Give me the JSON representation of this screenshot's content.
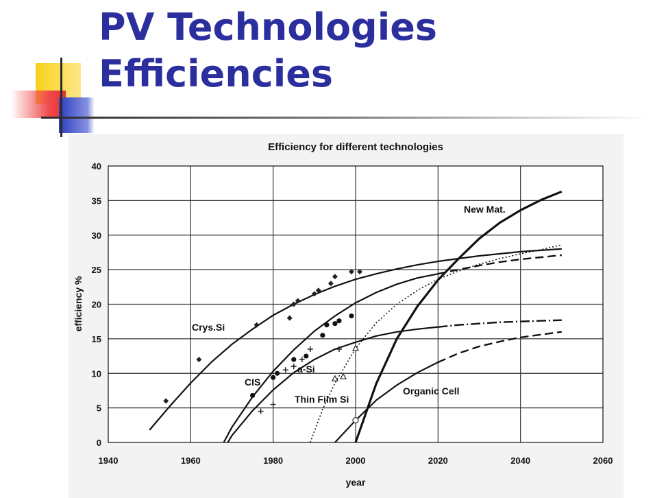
{
  "slide": {
    "title_line1": "PV Technologies",
    "title_line2": "Efficiencies"
  },
  "chart_data": {
    "type": "line",
    "title": "Efficiency for different technologies",
    "xlabel": "year",
    "ylabel": "efficiency %",
    "xlim": [
      1940,
      2060
    ],
    "ylim": [
      0,
      40
    ],
    "xticks": [
      1940,
      1960,
      1980,
      2000,
      2020,
      2040,
      2060
    ],
    "yticks": [
      0,
      5,
      10,
      15,
      20,
      25,
      30,
      35,
      40
    ],
    "grid": true,
    "legend": "none",
    "series": [
      {
        "name": "Crys.Si",
        "points": [
          [
            1950,
            1.8
          ],
          [
            1955,
            5.3
          ],
          [
            1960,
            8.6
          ],
          [
            1965,
            11.6
          ],
          [
            1970,
            14.2
          ],
          [
            1975,
            16.4
          ],
          [
            1980,
            18.4
          ],
          [
            1985,
            20.0
          ],
          [
            1990,
            21.4
          ],
          [
            1995,
            22.6
          ],
          [
            2000,
            23.6
          ],
          [
            2005,
            24.4
          ],
          [
            2010,
            25.1
          ],
          [
            2015,
            25.7
          ],
          [
            2020,
            26.2
          ],
          [
            2025,
            26.6
          ],
          [
            2030,
            27.0
          ],
          [
            2035,
            27.3
          ],
          [
            2040,
            27.6
          ],
          [
            2045,
            27.8
          ],
          [
            2050,
            28.0
          ]
        ],
        "projection": [],
        "markers": [
          [
            1954,
            6.0
          ],
          [
            1962,
            12.0
          ],
          [
            1976,
            17.0
          ],
          [
            1984,
            18.0
          ],
          [
            1985,
            20.0
          ],
          [
            1986,
            20.5
          ],
          [
            1990,
            21.5
          ],
          [
            1991,
            22.0
          ],
          [
            1994,
            23.0
          ],
          [
            1995,
            24.0
          ],
          [
            1999,
            24.7
          ],
          [
            2001,
            24.7
          ]
        ]
      },
      {
        "name": "CIS",
        "points": [
          [
            1968,
            0.0
          ],
          [
            1970,
            2.2
          ],
          [
            1975,
            6.6
          ],
          [
            1980,
            10.3
          ],
          [
            1985,
            13.4
          ],
          [
            1990,
            16.1
          ],
          [
            1995,
            18.3
          ],
          [
            2000,
            20.2
          ],
          [
            2005,
            21.7
          ],
          [
            2010,
            22.9
          ],
          [
            2015,
            23.8
          ],
          [
            2020,
            24.4
          ]
        ],
        "projection": [
          [
            2020,
            24.4
          ],
          [
            2025,
            25.0
          ],
          [
            2030,
            25.6
          ],
          [
            2035,
            26.1
          ],
          [
            2040,
            26.5
          ],
          [
            2045,
            26.8
          ],
          [
            2050,
            27.1
          ]
        ],
        "markers": [
          [
            1975,
            6.8
          ],
          [
            1980,
            9.4
          ],
          [
            1981,
            10.0
          ],
          [
            1985,
            12.0
          ],
          [
            1988,
            12.5
          ],
          [
            1992,
            15.5
          ],
          [
            1993,
            17.0
          ],
          [
            1995,
            17.2
          ],
          [
            1996,
            17.6
          ],
          [
            1999,
            18.3
          ]
        ]
      },
      {
        "name": "a-Si",
        "points": [
          [
            1969,
            0.0
          ],
          [
            1970,
            1.0
          ],
          [
            1975,
            4.6
          ],
          [
            1980,
            7.6
          ],
          [
            1985,
            10.1
          ],
          [
            1990,
            12.0
          ],
          [
            1995,
            13.5
          ],
          [
            2000,
            14.5
          ],
          [
            2005,
            15.4
          ],
          [
            2010,
            16.0
          ],
          [
            2015,
            16.4
          ],
          [
            2020,
            16.7
          ]
        ],
        "projection": [
          [
            2020,
            16.7
          ],
          [
            2025,
            17.0
          ],
          [
            2030,
            17.2
          ],
          [
            2035,
            17.4
          ],
          [
            2040,
            17.5
          ],
          [
            2045,
            17.6
          ],
          [
            2050,
            17.7
          ]
        ],
        "markers": [
          [
            1977,
            4.5
          ],
          [
            1980,
            5.5
          ],
          [
            1983,
            10.5
          ],
          [
            1985,
            11.0
          ],
          [
            1987,
            12.0
          ],
          [
            1989,
            13.5
          ],
          [
            1996,
            13.5
          ]
        ]
      },
      {
        "name": "Thin Film Si",
        "points": [],
        "projection": [
          [
            1989,
            0.0
          ],
          [
            1992,
            4.8
          ],
          [
            1995,
            8.6
          ],
          [
            2000,
            13.6
          ],
          [
            2005,
            17.3
          ],
          [
            2010,
            20.0
          ],
          [
            2015,
            22.0
          ],
          [
            2020,
            23.6
          ],
          [
            2025,
            24.8
          ],
          [
            2030,
            25.8
          ],
          [
            2035,
            26.6
          ],
          [
            2040,
            27.3
          ],
          [
            2045,
            27.9
          ],
          [
            2050,
            28.6
          ]
        ],
        "markers": [
          [
            1995,
            9.2
          ],
          [
            1997,
            9.5
          ],
          [
            2000,
            13.6
          ]
        ]
      },
      {
        "name": "Organic Cell",
        "points": [
          [
            1995,
            0.0
          ],
          [
            2000,
            3.2
          ],
          [
            2005,
            6.1
          ],
          [
            2010,
            8.3
          ],
          [
            2015,
            10.1
          ],
          [
            2020,
            11.6
          ]
        ],
        "projection": [
          [
            2020,
            11.6
          ],
          [
            2025,
            12.9
          ],
          [
            2030,
            13.9
          ],
          [
            2035,
            14.6
          ],
          [
            2040,
            15.2
          ],
          [
            2045,
            15.6
          ],
          [
            2050,
            16.0
          ]
        ],
        "markers": [
          [
            2000,
            3.2
          ]
        ]
      },
      {
        "name": "New Mat.",
        "points": [
          [
            2000,
            0.0
          ],
          [
            2005,
            8.5
          ],
          [
            2010,
            15.0
          ],
          [
            2015,
            19.7
          ],
          [
            2020,
            23.5
          ],
          [
            2025,
            26.6
          ],
          [
            2030,
            29.5
          ],
          [
            2035,
            31.8
          ],
          [
            2040,
            33.6
          ],
          [
            2045,
            35.1
          ],
          [
            2050,
            36.3
          ]
        ],
        "projection": [],
        "markers": []
      }
    ]
  }
}
